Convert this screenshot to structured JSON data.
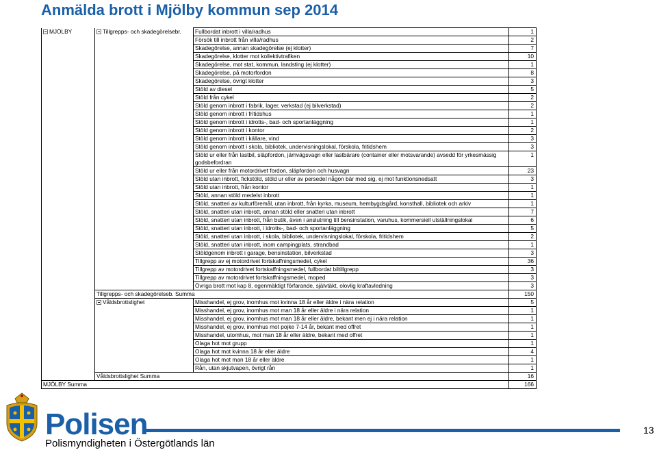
{
  "title": "Anmälda brott i Mjölby kommun sep 2014",
  "municipality": "MJÖLBY",
  "group1": {
    "label": "Tillgrepps- och skadegörelsebr.",
    "rows": [
      {
        "text": "Fullbordat inbrott i villa/radhus",
        "value": "1"
      },
      {
        "text": "Försök till inbrott från villa/radhus",
        "value": "2"
      },
      {
        "text": "Skadegörelse, annan skadegörelse (ej klotter)",
        "value": "7"
      },
      {
        "text": "Skadegörelse, klotter mot kollektivtrafiken",
        "value": "10"
      },
      {
        "text": "Skadegörelse, mot stat, kommun, landsting (ej klotter)",
        "value": "1"
      },
      {
        "text": "Skadegörelse, på motorfordon",
        "value": "8"
      },
      {
        "text": "Skadegörelse, övrigt klotter",
        "value": "3"
      },
      {
        "text": "Stöld av diesel",
        "value": "5"
      },
      {
        "text": "Stöld från cykel",
        "value": "2"
      },
      {
        "text": "Stöld genom inbrott i fabrik, lager, verkstad (ej bilverkstad)",
        "value": "2"
      },
      {
        "text": "Stöld genom inbrott i fritidshus",
        "value": "1"
      },
      {
        "text": "Stöld genom inbrott i idrotts-, bad- och sportanläggning",
        "value": "1"
      },
      {
        "text": "Stöld genom inbrott i kontor",
        "value": "2"
      },
      {
        "text": "Stöld genom inbrott i källare, vind",
        "value": "3"
      },
      {
        "text": "Stöld genom inbrott i skola, bibliotek, undervisningslokal, förskola, fritidshem",
        "value": "3"
      },
      {
        "text": "Stöld ur eller från lastbil, släpfordon, jämvägsvagn eller lastbärare (container eller motsvarande) avsedd för yrkesmässig godsbefordran",
        "value": "1"
      },
      {
        "text": "Stöld ur eller från motordrivet fordon, släpfordon och husvagn",
        "value": "23"
      },
      {
        "text": "Stöld utan inbrott, fickstöld, stöld ur eller av persedel någon bär med sig, ej mot funktionsnedsatt",
        "value": "3"
      },
      {
        "text": "Stöld utan inbrott, från kontor",
        "value": "1"
      },
      {
        "text": "Stöld, annan stöld medelst inbrott",
        "value": "1"
      },
      {
        "text": "Stöld, snatteri av kulturföremål, utan inbrott, från kyrka, museum, hembygdsgård, konsthall, bibliotek och arkiv",
        "value": "1"
      },
      {
        "text": "Stöld, snatteri utan inbrott, annan stöld eller snatteri utan inbrott",
        "value": "7"
      },
      {
        "text": "Stöld, snatteri utan inbrott, från butik, även i anslutning till bensinstation, varuhus, kommersiell utställningslokal",
        "value": "6"
      },
      {
        "text": "Stöld, snatteri utan inbrott, i idrotts-, bad- och sportanläggning",
        "value": "5"
      },
      {
        "text": "Stöld, snatteri utan inbrott, i skola, bibliotek, undervisningslokal, förskola, fritidshem",
        "value": "2"
      },
      {
        "text": "Stöld, snatteri utan inbrott, inom campingplats, strandbad",
        "value": "1"
      },
      {
        "text": "Stöldgenom inbrott i garage, bensinstation, bilverkstad",
        "value": "3"
      },
      {
        "text": "Tillgrepp av ej motordrivet fortskaffningsmedel, cykel",
        "value": "36"
      },
      {
        "text": "Tillgrepp av motordrivet fortskaffningsmedel, fullbordat biltillgrepp",
        "value": "3"
      },
      {
        "text": "Tillgrepp av motordrivet fortskaffningsmedel, moped",
        "value": "3"
      },
      {
        "text": "Övriga brott mot kap 8, egenmäktigt förfarande, självtäkt, olovlig kraftavledning",
        "value": "3"
      }
    ],
    "summary_label": "Tillgrepps- och skadegörelseb. Summa",
    "summary_value": "150"
  },
  "group2": {
    "label": "Våldsbrottslighet",
    "rows": [
      {
        "text": "Misshandel, ej grov, inomhus mot kvinna 18 år eller äldre i nära relation",
        "value": "5"
      },
      {
        "text": "Misshandel, ej grov, inomhus mot man 18 år eller äldre i nära relation",
        "value": "1"
      },
      {
        "text": "Misshandel, ej grov, inomhus mot man 18 år eller äldre, bekant men ej i nära relation",
        "value": "1"
      },
      {
        "text": "Misshandel, ej grov, inomhus mot pojke 7-14 år, bekant med offret",
        "value": "1"
      },
      {
        "text": "Misshandel, utomhus, mot man 18 år eller äldre, bekant med offret",
        "value": "1"
      },
      {
        "text": "Olaga hot mot grupp",
        "value": "1"
      },
      {
        "text": "Olaga hot mot kvinna 18 år eller äldre",
        "value": "4"
      },
      {
        "text": "Olaga hot mot man 18 år eller äldre",
        "value": "1"
      },
      {
        "text": "Rån, utan skjutvapen, övrigt rån",
        "value": "1"
      }
    ],
    "summary_label": "Våldsbrottslighet Summa",
    "summary_value": "16"
  },
  "total_label": "MJÖLBY Summa",
  "total_value": "166",
  "footer": {
    "brand": "Polisen",
    "subtitle": "Polismyndigheten i Östergötlands län",
    "page_number": "13",
    "brand_color": "#1a5fa8"
  }
}
